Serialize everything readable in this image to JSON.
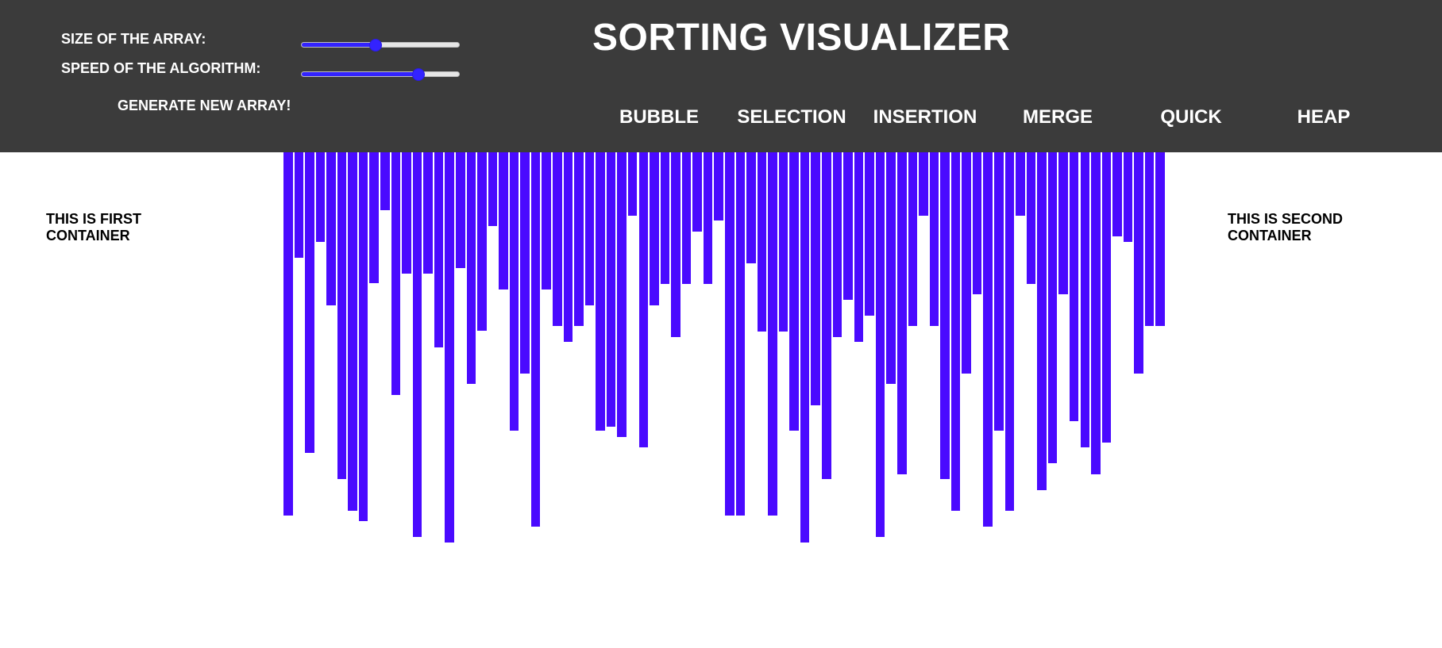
{
  "header": {
    "title": "SORTING VISUALIZER",
    "size_label": "SIZE OF THE ARRAY:",
    "speed_label": "SPEED OF THE ALGORITHM:",
    "generate_label": "GENERATE NEW ARRAY!",
    "size_slider_value": 0.47,
    "speed_slider_value": 0.74
  },
  "algorithms": [
    {
      "label": "BUBBLE"
    },
    {
      "label": "SELECTION"
    },
    {
      "label": "INSERTION"
    },
    {
      "label": "MERGE"
    },
    {
      "label": "QUICK"
    },
    {
      "label": "HEAP"
    }
  ],
  "containers": {
    "first": "THIS IS FIRST CONTAINER",
    "second": "THIS IS SECOND CONTAINER"
  },
  "colors": {
    "header_bg": "#3b3b3b",
    "bar": "#4a0aff",
    "slider_accent": "#3323ff"
  },
  "array_values": [
    458,
    133,
    379,
    113,
    193,
    412,
    452,
    465,
    165,
    73,
    306,
    153,
    485,
    153,
    246,
    492,
    146,
    292,
    225,
    93,
    173,
    351,
    279,
    472,
    173,
    219,
    239,
    219,
    193,
    351,
    346,
    359,
    80,
    372,
    193,
    166,
    233,
    166,
    100,
    166,
    86,
    458,
    458,
    140,
    226,
    458,
    226,
    351,
    492,
    319,
    412,
    233,
    186,
    239,
    206,
    485,
    292,
    406,
    219,
    80,
    219,
    412,
    452,
    279,
    179,
    472,
    351,
    452,
    80,
    166,
    426,
    392,
    179,
    339,
    372,
    406,
    366,
    106,
    113,
    279,
    219,
    219
  ]
}
